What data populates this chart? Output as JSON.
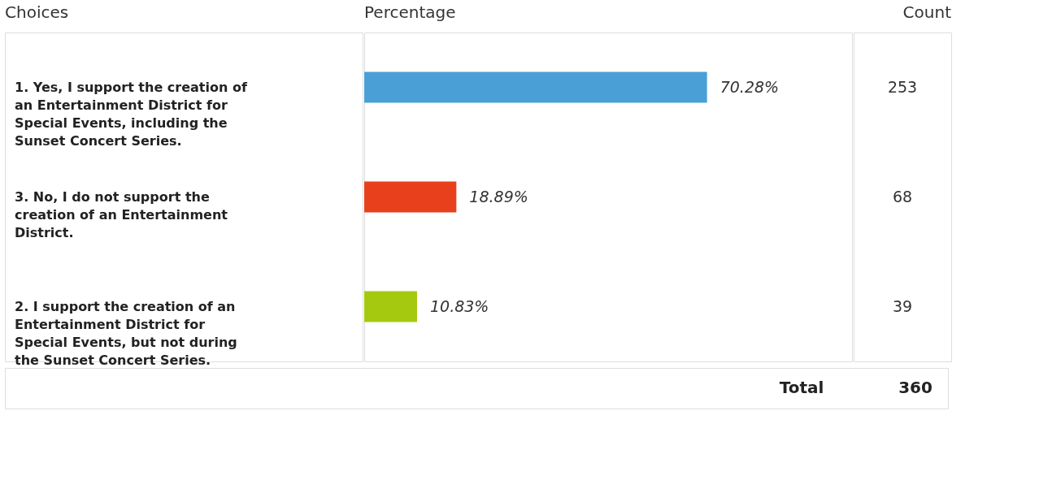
{
  "chart_data": {
    "type": "bar",
    "orientation": "horizontal",
    "ylabel": "Choices",
    "xlabel": "Percentage",
    "categories": [
      "1. Yes, I support the creation of an Entertainment District for Special Events, including the Sunset Concert Series.",
      "3. No, I do not support the creation of an Entertainment District.",
      "2. I support the creation of an Entertainment District for Special Events, but not during the Sunset Concert Series."
    ],
    "values": [
      70.28,
      18.89,
      10.83
    ],
    "colors": [
      "#4a9fd6",
      "#e8401c",
      "#a5c90f"
    ],
    "value_labels": [
      "70.28%",
      "18.89%",
      "10.83%"
    ],
    "xlim": [
      0,
      100
    ],
    "annotations": [
      "Count",
      "253",
      "68",
      "39",
      "Total",
      "360"
    ]
  }
}
